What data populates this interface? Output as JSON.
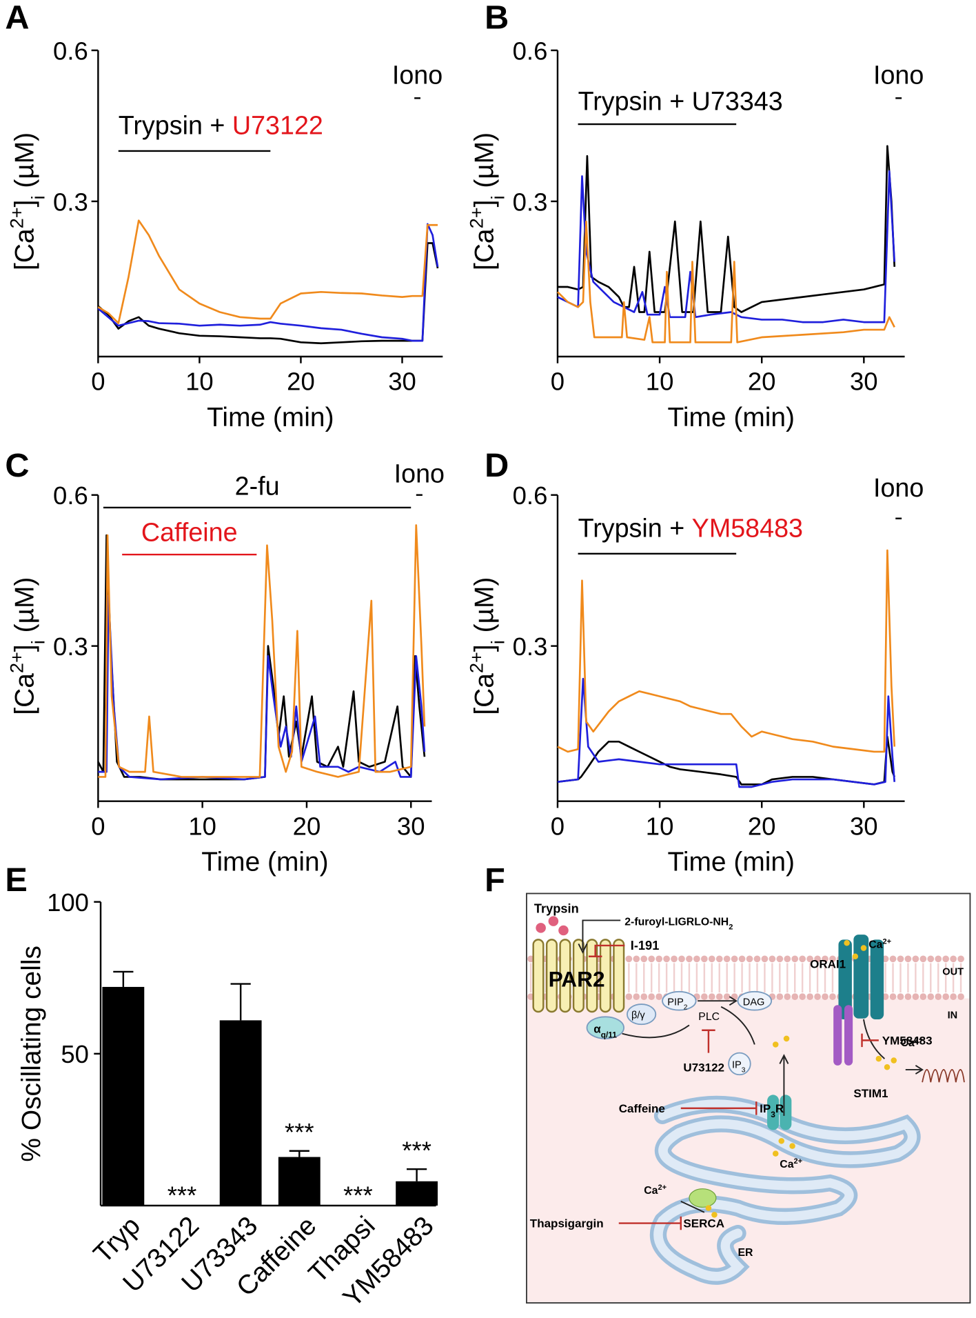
{
  "chart_data": [
    {
      "type": "line",
      "panel_label": "A",
      "y_label": [
        "[Ca",
        "2+",
        "]",
        "i",
        " (µM)"
      ],
      "x_label": "Time (min)",
      "xlim": [
        0,
        34
      ],
      "xticks": [
        0,
        10,
        20,
        30
      ],
      "ylim": [
        0,
        0.6
      ],
      "yticks": [
        0.3,
        0.6
      ],
      "annotations": [
        {
          "segments": [
            {
              "text": "Trypsin + ",
              "color": "#000000"
            },
            {
              "text": "U73122",
              "color": "#e3151b"
            }
          ],
          "start": 2,
          "end": 17,
          "line_color": "#000000"
        },
        {
          "segments": [
            {
              "text": "Iono",
              "color": "#000000"
            }
          ],
          "start": 31.2,
          "end": 31.8,
          "line_color": "#000000"
        }
      ],
      "series": [
        {
          "color": "#000000",
          "x": [
            0,
            1,
            2,
            3,
            4,
            5,
            6,
            8,
            10,
            12,
            14,
            16,
            17,
            18,
            20,
            22,
            24,
            26,
            28,
            30,
            31,
            32,
            32.5,
            33,
            33.5
          ],
          "values": [
            0.092,
            0.075,
            0.047,
            0.062,
            0.07,
            0.053,
            0.047,
            0.038,
            0.033,
            0.032,
            0.03,
            0.028,
            0.028,
            0.027,
            0.02,
            0.018,
            0.02,
            0.022,
            0.023,
            0.023,
            0.023,
            0.023,
            0.217,
            0.217,
            0.167
          ]
        },
        {
          "color": "#1f1fdc",
          "x": [
            0,
            1,
            2,
            3,
            4,
            5,
            6,
            8,
            10,
            12,
            14,
            16,
            17,
            18,
            20,
            22,
            24,
            26,
            28,
            30,
            31,
            32,
            32.5,
            33,
            33.5
          ],
          "values": [
            0.087,
            0.07,
            0.053,
            0.058,
            0.063,
            0.062,
            0.058,
            0.057,
            0.053,
            0.055,
            0.053,
            0.055,
            0.06,
            0.057,
            0.053,
            0.048,
            0.045,
            0.037,
            0.03,
            0.027,
            0.023,
            0.023,
            0.255,
            0.233,
            0.17
          ]
        },
        {
          "color": "#f08a1c",
          "x": [
            0,
            1,
            2,
            3,
            4,
            5,
            6,
            8,
            10,
            12,
            14,
            16,
            17,
            18,
            20,
            22,
            24,
            26,
            28,
            30,
            31,
            32,
            32.5,
            33,
            33.5
          ],
          "values": [
            0.09,
            0.078,
            0.058,
            0.15,
            0.262,
            0.233,
            0.192,
            0.125,
            0.097,
            0.08,
            0.07,
            0.067,
            0.067,
            0.097,
            0.117,
            0.12,
            0.118,
            0.117,
            0.113,
            0.11,
            0.112,
            0.112,
            0.253,
            0.253,
            0.253
          ]
        }
      ]
    },
    {
      "type": "line",
      "panel_label": "B",
      "y_label": [
        "[Ca",
        "2+",
        "]",
        "i",
        " (µM)"
      ],
      "x_label": "Time (min)",
      "xlim": [
        0,
        34
      ],
      "xticks": [
        0,
        10,
        20,
        30
      ],
      "ylim": [
        0,
        0.6
      ],
      "yticks": [
        0.3,
        0.6
      ],
      "annotations": [
        {
          "segments": [
            {
              "text": "Trypsin + U73343",
              "color": "#000000"
            }
          ],
          "start": 2,
          "end": 17.5,
          "line_color": "#000000"
        },
        {
          "segments": [
            {
              "text": "Iono",
              "color": "#000000"
            }
          ],
          "start": 33.1,
          "end": 33.7,
          "line_color": "#000000"
        }
      ],
      "series": [
        {
          "color": "#000000",
          "x": [
            0,
            1,
            2,
            2.5,
            2.9,
            3.3,
            4,
            5,
            6,
            6.5,
            7,
            7.5,
            8,
            8.5,
            9,
            9.5,
            10.5,
            11.5,
            12.2,
            13.3,
            14,
            14.7,
            16,
            16.7,
            17.3,
            18,
            20,
            22,
            24,
            26,
            28,
            30,
            31,
            32,
            32.3,
            32.7,
            33
          ],
          "values": [
            0.13,
            0.13,
            0.125,
            0.13,
            0.39,
            0.15,
            0.14,
            0.13,
            0.11,
            0.09,
            0.09,
            0.17,
            0.08,
            0.08,
            0.2,
            0.08,
            0.08,
            0.26,
            0.08,
            0.08,
            0.26,
            0.08,
            0.08,
            0.23,
            0.09,
            0.08,
            0.1,
            0.105,
            0.11,
            0.115,
            0.12,
            0.125,
            0.13,
            0.135,
            0.41,
            0.3,
            0.17
          ]
        },
        {
          "color": "#1f1fdc",
          "x": [
            0,
            1,
            2,
            2.4,
            2.8,
            3.5,
            4.5,
            5.5,
            6.5,
            7.5,
            8.3,
            8.8,
            10,
            10.5,
            11,
            12.5,
            13,
            13.5,
            15,
            17,
            18,
            20,
            22,
            24,
            26,
            28,
            30,
            32,
            32.5,
            33
          ],
          "values": [
            0.11,
            0.1,
            0.09,
            0.35,
            0.2,
            0.14,
            0.12,
            0.1,
            0.09,
            0.08,
            0.12,
            0.075,
            0.075,
            0.13,
            0.07,
            0.07,
            0.16,
            0.07,
            0.075,
            0.08,
            0.07,
            0.065,
            0.065,
            0.06,
            0.06,
            0.065,
            0.06,
            0.06,
            0.36,
            0.18
          ]
        },
        {
          "color": "#f08a1c",
          "x": [
            0,
            1,
            2,
            2.5,
            2.8,
            3.2,
            3.6,
            5,
            6.3,
            6.5,
            6.8,
            8.5,
            9,
            9.3,
            10.5,
            10.7,
            11,
            13,
            13.2,
            13.5,
            17,
            17.3,
            17.6,
            20,
            24,
            28,
            30,
            32,
            32.5,
            33
          ],
          "values": [
            0.12,
            0.1,
            0.09,
            0.1,
            0.26,
            0.1,
            0.03,
            0.03,
            0.03,
            0.1,
            0.03,
            0.025,
            0.07,
            0.02,
            0.02,
            0.16,
            0.02,
            0.02,
            0.18,
            0.02,
            0.02,
            0.18,
            0.02,
            0.03,
            0.035,
            0.04,
            0.045,
            0.045,
            0.07,
            0.05
          ]
        }
      ]
    },
    {
      "type": "line",
      "panel_label": "C",
      "y_label": [
        "[Ca",
        "2+",
        "]",
        "i",
        " (µM)"
      ],
      "x_label": "Time (min)",
      "xlim": [
        0,
        32
      ],
      "xticks": [
        0,
        10,
        20,
        30
      ],
      "ylim": [
        0,
        0.6
      ],
      "yticks": [
        0.3,
        0.6
      ],
      "annotations": [
        {
          "segments": [
            {
              "text": "2-fu",
              "color": "#000000"
            }
          ],
          "start": 0.5,
          "end": 30,
          "line_color": "#000000"
        },
        {
          "segments": [
            {
              "text": "Caffeine",
              "color": "#e3151b"
            }
          ],
          "start": 2.3,
          "end": 15.2,
          "line_color": "#e3151b"
        },
        {
          "segments": [
            {
              "text": "Iono",
              "color": "#000000"
            }
          ],
          "start": 30.5,
          "end": 31.1,
          "line_color": "#000000"
        }
      ],
      "series": [
        {
          "color": "#000000",
          "x": [
            0,
            0.5,
            0.8,
            1.2,
            1.8,
            2.5,
            4,
            6,
            10,
            14,
            16,
            16.3,
            16.8,
            17.3,
            17.8,
            18.3,
            19,
            19.5,
            20.5,
            21,
            22,
            23,
            23.5,
            24.5,
            25,
            26,
            27.5,
            28.7,
            29.2,
            30,
            30.4,
            30.8,
            31.3
          ],
          "values": [
            0.07,
            0.05,
            0.52,
            0.3,
            0.07,
            0.04,
            0.04,
            0.035,
            0.035,
            0.035,
            0.04,
            0.3,
            0.22,
            0.12,
            0.2,
            0.08,
            0.15,
            0.08,
            0.2,
            0.07,
            0.06,
            0.1,
            0.06,
            0.21,
            0.07,
            0.06,
            0.07,
            0.18,
            0.06,
            0.04,
            0.28,
            0.18,
            0.08
          ]
        },
        {
          "color": "#1f1fdc",
          "x": [
            0,
            0.8,
            1,
            1.5,
            2,
            3,
            6,
            10,
            14,
            16,
            16.3,
            16.8,
            17.5,
            18,
            18.5,
            19,
            19.5,
            20.8,
            21.3,
            23,
            24,
            25,
            27,
            28.5,
            29,
            30,
            30.5,
            31,
            31.3
          ],
          "values": [
            0.05,
            0.05,
            0.4,
            0.18,
            0.06,
            0.04,
            0.035,
            0.04,
            0.035,
            0.04,
            0.28,
            0.2,
            0.1,
            0.14,
            0.08,
            0.18,
            0.07,
            0.16,
            0.06,
            0.06,
            0.05,
            0.06,
            0.05,
            0.07,
            0.04,
            0.04,
            0.28,
            0.18,
            0.09
          ]
        },
        {
          "color": "#f08a1c",
          "x": [
            0,
            0.7,
            0.9,
            1.3,
            2,
            3,
            4.5,
            4.9,
            5.3,
            8,
            12,
            15.5,
            16.2,
            16.7,
            17.3,
            18,
            18.6,
            19.1,
            19.5,
            21,
            23,
            25,
            26.2,
            26.6,
            28,
            30,
            30.5,
            31,
            31.3
          ],
          "values": [
            0.04,
            0.04,
            0.52,
            0.2,
            0.06,
            0.05,
            0.05,
            0.16,
            0.05,
            0.04,
            0.04,
            0.04,
            0.5,
            0.35,
            0.1,
            0.05,
            0.09,
            0.33,
            0.06,
            0.05,
            0.04,
            0.05,
            0.39,
            0.05,
            0.05,
            0.06,
            0.54,
            0.3,
            0.14
          ]
        }
      ]
    },
    {
      "type": "line",
      "panel_label": "D",
      "y_label": [
        "[Ca",
        "2+",
        "]",
        "i",
        " (µM)"
      ],
      "x_label": "Time (min)",
      "xlim": [
        0,
        34
      ],
      "xticks": [
        0,
        10,
        20,
        30
      ],
      "ylim": [
        0,
        0.6
      ],
      "yticks": [
        0.3,
        0.6
      ],
      "annotations": [
        {
          "segments": [
            {
              "text": "Trypsin + ",
              "color": "#000000"
            },
            {
              "text": "YM58483",
              "color": "#e3151b"
            }
          ],
          "start": 2,
          "end": 17.5,
          "line_color": "#000000"
        },
        {
          "segments": [
            {
              "text": "Iono",
              "color": "#000000"
            }
          ],
          "start": 33.1,
          "end": 33.7,
          "line_color": "#000000"
        }
      ],
      "series": [
        {
          "color": "#000000",
          "x": [
            0,
            2,
            2.3,
            3,
            4,
            5,
            6,
            7,
            8,
            9,
            10,
            11,
            12,
            14,
            16,
            17.5,
            18,
            20,
            21,
            23,
            25,
            27,
            29,
            31,
            32,
            32.3,
            32.8,
            33
          ],
          "values": [
            0.03,
            0.035,
            0.04,
            0.06,
            0.09,
            0.11,
            0.11,
            0.1,
            0.09,
            0.08,
            0.07,
            0.06,
            0.055,
            0.05,
            0.045,
            0.04,
            0.025,
            0.025,
            0.035,
            0.04,
            0.04,
            0.035,
            0.03,
            0.025,
            0.03,
            0.12,
            0.05,
            0.04
          ]
        },
        {
          "color": "#1f1fdc",
          "x": [
            0,
            2,
            2.5,
            3,
            4,
            6,
            8,
            10,
            12,
            14,
            16,
            17.5,
            17.8,
            19,
            21,
            23,
            25,
            27,
            29,
            31,
            32.1,
            32.4,
            32.8,
            33
          ],
          "values": [
            0.03,
            0.035,
            0.235,
            0.1,
            0.07,
            0.075,
            0.07,
            0.065,
            0.065,
            0.065,
            0.065,
            0.065,
            0.02,
            0.02,
            0.03,
            0.035,
            0.035,
            0.035,
            0.03,
            0.025,
            0.03,
            0.2,
            0.08,
            0.03
          ]
        },
        {
          "color": "#f08a1c",
          "x": [
            0,
            1,
            2,
            2.4,
            2.8,
            3.5,
            5,
            6,
            7,
            8,
            9,
            10,
            11,
            12,
            13,
            14,
            15,
            16,
            17,
            18,
            19,
            20,
            21,
            23,
            25,
            27,
            29,
            31,
            32,
            32.3,
            32.7,
            33
          ],
          "values": [
            0.1,
            0.09,
            0.095,
            0.43,
            0.15,
            0.13,
            0.17,
            0.19,
            0.2,
            0.21,
            0.205,
            0.2,
            0.195,
            0.19,
            0.18,
            0.175,
            0.17,
            0.165,
            0.165,
            0.14,
            0.12,
            0.13,
            0.125,
            0.115,
            0.11,
            0.1,
            0.095,
            0.09,
            0.09,
            0.49,
            0.22,
            0.1
          ]
        }
      ]
    },
    {
      "type": "bar",
      "panel_label": "E",
      "y_label": "% Oscillating cells",
      "color": "#000000",
      "categories": [
        "Tryp",
        "U73122",
        "U73343",
        "Caffeine",
        "Thapsi",
        "YM58483"
      ],
      "values": [
        72,
        0,
        61,
        16,
        0,
        8
      ],
      "errors": [
        5,
        null,
        12,
        2,
        null,
        4
      ],
      "annotations": [
        null,
        "***",
        null,
        "***",
        "***",
        "***"
      ],
      "ylim": [
        0,
        100
      ],
      "yticks": [
        50,
        100
      ]
    }
  ],
  "diagram": {
    "panel_label": "F",
    "labels": [
      {
        "text": "Trypsin"
      },
      {
        "text": "2-furoyl-LIGRLO-NH",
        "sub": "2"
      },
      {
        "text": "I-191"
      },
      {
        "text": "ORAI1"
      },
      {
        "text": "Ca",
        "sup": "2+"
      },
      {
        "text": "OUT"
      },
      {
        "text": "PAR2"
      },
      {
        "text": "PIP",
        "sub": "2"
      },
      {
        "text": "DAG"
      },
      {
        "text": "α",
        "sub": "q/11"
      },
      {
        "text": "β/γ"
      },
      {
        "text": "PLC"
      },
      {
        "text": "IN"
      },
      {
        "text": "YM58483"
      },
      {
        "text": "U73122"
      },
      {
        "text": "IP",
        "sub": "3"
      },
      {
        "text": "Caffeine"
      },
      {
        "text": "IP",
        "sub": "3",
        "after": "R"
      },
      {
        "text": "STIM1"
      },
      {
        "text": "Ca",
        "sup": "2+"
      },
      {
        "text": "Thapsigargin"
      },
      {
        "text": "SERCA"
      },
      {
        "text": "Ca",
        "sup": "2+"
      },
      {
        "text": "Ca",
        "sup": "2+"
      },
      {
        "text": "ER"
      }
    ]
  }
}
